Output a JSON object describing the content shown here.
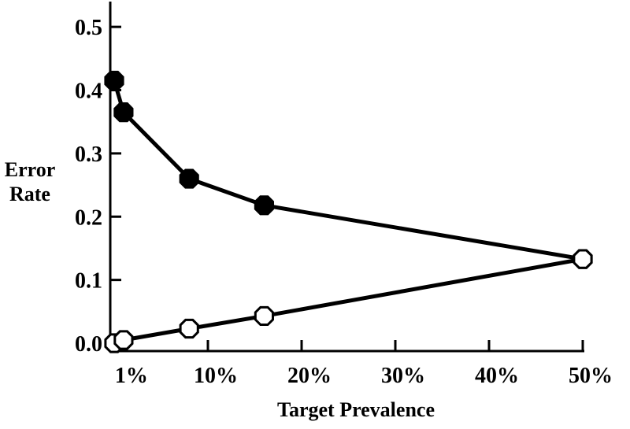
{
  "chart_data": {
    "type": "line",
    "title": "",
    "xlabel": "Target Prevalence",
    "ylabel_lines": [
      "Error",
      "Rate"
    ],
    "x_tick_labels": [
      "1%",
      "10%",
      "20%",
      "30%",
      "40%",
      "50%"
    ],
    "x_tick_values": [
      1,
      10,
      20,
      30,
      40,
      50
    ],
    "y_tick_labels": [
      "0.0",
      "0.1",
      "0.2",
      "0.3",
      "0.4",
      "0.5"
    ],
    "y_tick_values": [
      0.0,
      0.1,
      0.2,
      0.3,
      0.4,
      0.5
    ],
    "xlim": [
      0,
      50
    ],
    "ylim": [
      0,
      0.54
    ],
    "grid": false,
    "legend": "none",
    "series": [
      {
        "marker": "filled-octagon",
        "x": [
          0,
          1,
          8,
          16,
          50
        ],
        "values": [
          0.415,
          0.365,
          0.26,
          0.218,
          0.133
        ]
      },
      {
        "marker": "open-octagon",
        "x": [
          0,
          1,
          8,
          16,
          50
        ],
        "values": [
          0.0,
          0.005,
          0.023,
          0.043,
          0.133
        ]
      }
    ],
    "colors": {
      "line": "#000000",
      "open_fill": "#ffffff",
      "filled_fill": "#000000"
    }
  }
}
